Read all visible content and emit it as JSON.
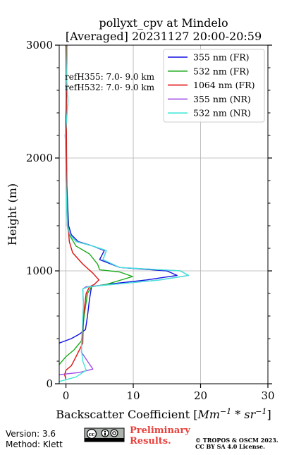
{
  "chart_data": {
    "type": "line",
    "title": "pollyxt_cpv at Mindelo",
    "subtitle": "[Averaged] 20231127 20:00-20:59",
    "xlabel": "Backscatter Coefficient [",
    "xlabel_math": "Mm",
    "xlabel_sup1": "−1",
    "xlabel_mid": " * sr",
    "xlabel_sup2": "−1",
    "xlabel_close": "]",
    "ylabel": "Height (m)",
    "xlim": [
      -1,
      30
    ],
    "ylim": [
      0,
      3000
    ],
    "xticks": [
      0,
      10,
      20,
      30
    ],
    "yticks": [
      0,
      1000,
      2000,
      3000
    ],
    "grid": true,
    "legend_position": "top-right",
    "annotations": [
      "refH355:  7.0- 9.0 km",
      "refH532:  7.0- 9.0 km"
    ],
    "series": [
      {
        "name": "355 nm (FR)",
        "color": "#1010e0",
        "points": [
          [
            -1,
            360
          ],
          [
            0.8,
            400
          ],
          [
            2,
            440
          ],
          [
            2.9,
            480
          ],
          [
            3.2,
            600
          ],
          [
            3.5,
            750
          ],
          [
            3.8,
            860
          ],
          [
            6,
            880
          ],
          [
            12,
            920
          ],
          [
            16.5,
            960
          ],
          [
            15,
            1000
          ],
          [
            8,
            1030
          ],
          [
            5,
            1100
          ],
          [
            5.7,
            1180
          ],
          [
            4,
            1220
          ],
          [
            1.8,
            1260
          ],
          [
            0.8,
            1320
          ],
          [
            0.4,
            1400
          ],
          [
            0.1,
            1800
          ],
          [
            -0.1,
            2200
          ],
          [
            0.1,
            2600
          ],
          [
            0,
            3000
          ]
        ]
      },
      {
        "name": "532 nm (FR)",
        "color": "#1aaa1a",
        "points": [
          [
            -1,
            170
          ],
          [
            0,
            240
          ],
          [
            1.2,
            300
          ],
          [
            2.3,
            380
          ],
          [
            2.7,
            600
          ],
          [
            3.2,
            800
          ],
          [
            3.8,
            860
          ],
          [
            6,
            880
          ],
          [
            9.9,
            950
          ],
          [
            8,
            990
          ],
          [
            5,
            1010
          ],
          [
            4.7,
            1060
          ],
          [
            3.5,
            1150
          ],
          [
            1.5,
            1220
          ],
          [
            0.5,
            1320
          ],
          [
            0.3,
            1400
          ],
          [
            0,
            2000
          ],
          [
            0.1,
            3000
          ]
        ]
      },
      {
        "name": "1064 nm (FR)",
        "color": "#e01010",
        "points": [
          [
            0,
            40
          ],
          [
            -0.2,
            80
          ],
          [
            0,
            120
          ],
          [
            0.8,
            160
          ],
          [
            1.5,
            240
          ],
          [
            2.5,
            360
          ],
          [
            2.6,
            600
          ],
          [
            3,
            800
          ],
          [
            3.5,
            860
          ],
          [
            4.2,
            880
          ],
          [
            4.9,
            920
          ],
          [
            4,
            980
          ],
          [
            2.5,
            1060
          ],
          [
            1,
            1160
          ],
          [
            0.5,
            1260
          ],
          [
            0.4,
            1340
          ],
          [
            0.2,
            1400
          ],
          [
            0.1,
            2000
          ],
          [
            0,
            3000
          ]
        ]
      },
      {
        "name": "355 nm (NR)",
        "color": "#a050e8",
        "points": [
          [
            -1,
            80
          ],
          [
            2,
            100
          ],
          [
            4,
            130
          ],
          [
            3.2,
            200
          ],
          [
            2.3,
            280
          ],
          [
            2.4,
            450
          ],
          [
            2.6,
            700
          ],
          [
            2.5,
            840
          ],
          [
            3,
            860
          ],
          [
            7,
            880
          ],
          [
            14,
            920
          ],
          [
            18.2,
            960
          ],
          [
            17,
            1000
          ],
          [
            8,
            1030
          ],
          [
            5.5,
            1100
          ],
          [
            6,
            1180
          ],
          [
            4,
            1220
          ],
          [
            1.5,
            1260
          ],
          [
            0.6,
            1320
          ],
          [
            0.2,
            1400
          ],
          [
            0,
            1800
          ],
          [
            -0.1,
            2200
          ],
          [
            0.3,
            2500
          ],
          [
            0.1,
            2700
          ],
          [
            0.2,
            3000
          ]
        ]
      },
      {
        "name": "532 nm (NR)",
        "color": "#40e8d8",
        "points": [
          [
            -1,
            20
          ],
          [
            1.5,
            60
          ],
          [
            3,
            120
          ],
          [
            2.5,
            200
          ],
          [
            2.3,
            300
          ],
          [
            2.4,
            450
          ],
          [
            2.6,
            700
          ],
          [
            2.5,
            840
          ],
          [
            3.4,
            860
          ],
          [
            7,
            880
          ],
          [
            14,
            920
          ],
          [
            18.2,
            960
          ],
          [
            17,
            1000
          ],
          [
            8,
            1030
          ],
          [
            5.5,
            1100
          ],
          [
            6,
            1180
          ],
          [
            4,
            1220
          ],
          [
            1.5,
            1260
          ],
          [
            0.6,
            1320
          ],
          [
            0.2,
            1400
          ],
          [
            0,
            1800
          ],
          [
            -0.1,
            2200
          ],
          [
            0.3,
            2500
          ],
          [
            0.1,
            2700
          ],
          [
            0.2,
            3000
          ]
        ]
      }
    ]
  },
  "footer": {
    "version": "Version: 3.6",
    "method": "Method: Klett",
    "preliminary_line1": "Preliminary",
    "preliminary_line2": "Results.",
    "copyright_line1": "© TROPOS & OSCM 2023.",
    "copyright_line2": "CC BY SA 4.0 License.",
    "license_badge": "cc-by-sa-badge"
  }
}
